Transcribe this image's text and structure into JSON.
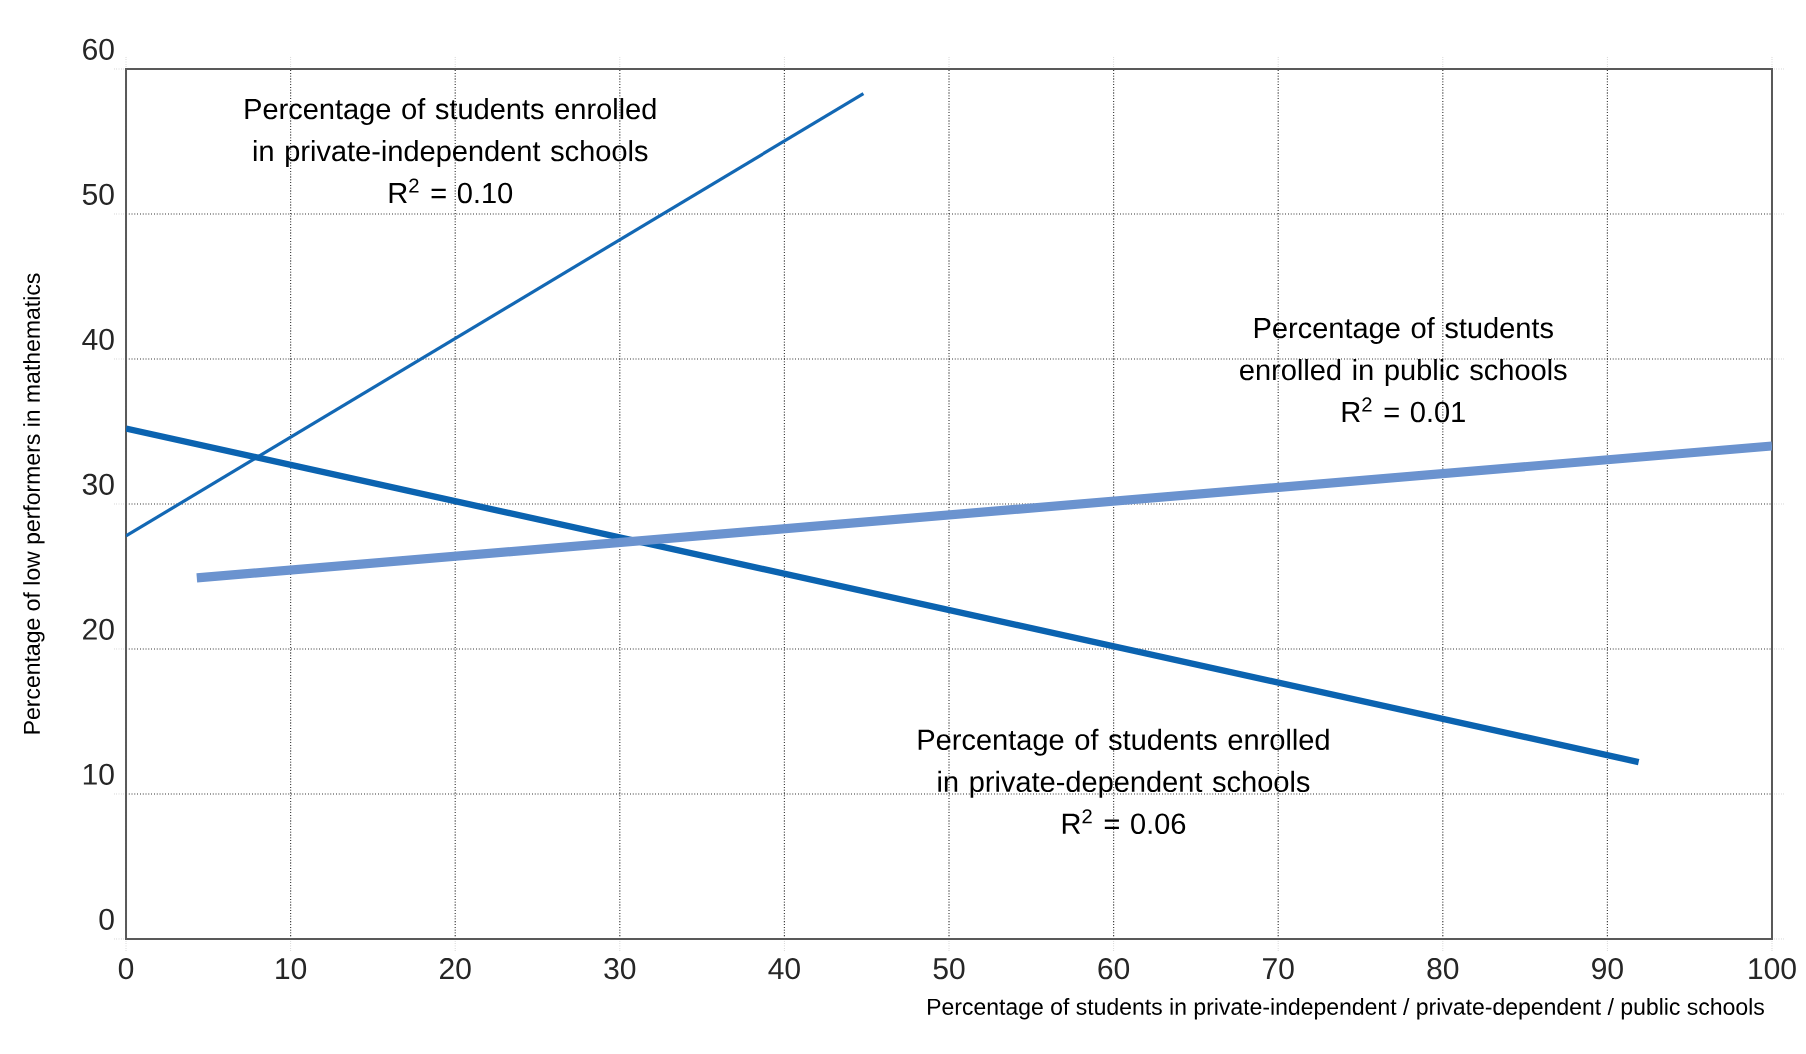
{
  "chart_data": {
    "type": "line",
    "xlabel": "Percentage of students in private-independent / private-dependent / public schools",
    "ylabel": "Percentage of low performers in mathematics",
    "xlim": [
      0,
      100
    ],
    "ylim": [
      0,
      60
    ],
    "xticks": [
      0,
      10,
      20,
      30,
      40,
      50,
      60,
      70,
      80,
      90,
      100
    ],
    "yticks": [
      0,
      10,
      20,
      30,
      40,
      50,
      60
    ],
    "grid": true,
    "line_style": "solid",
    "series": [
      {
        "name": "Percentage of students enrolled in private-independent schools",
        "color": "#1368b4",
        "x": [
          0,
          44.8
        ],
        "values": [
          27.8,
          58.3
        ]
      },
      {
        "name": "Percentage of students enrolled in private-dependent schools",
        "color": "#0b63b0",
        "x": [
          0,
          91.9
        ],
        "values": [
          35.2,
          12.2
        ]
      },
      {
        "name": "Percentage of students enrolled in public schools",
        "color": "#6b93cf",
        "x": [
          4.3,
          100
        ],
        "values": [
          24.9,
          34.0
        ]
      }
    ],
    "annotations": [
      "R$^{2}$ = 0.10",
      "R$^{2}$ = 0.06",
      "R$^{2}$ = 0.01"
    ]
  }
}
